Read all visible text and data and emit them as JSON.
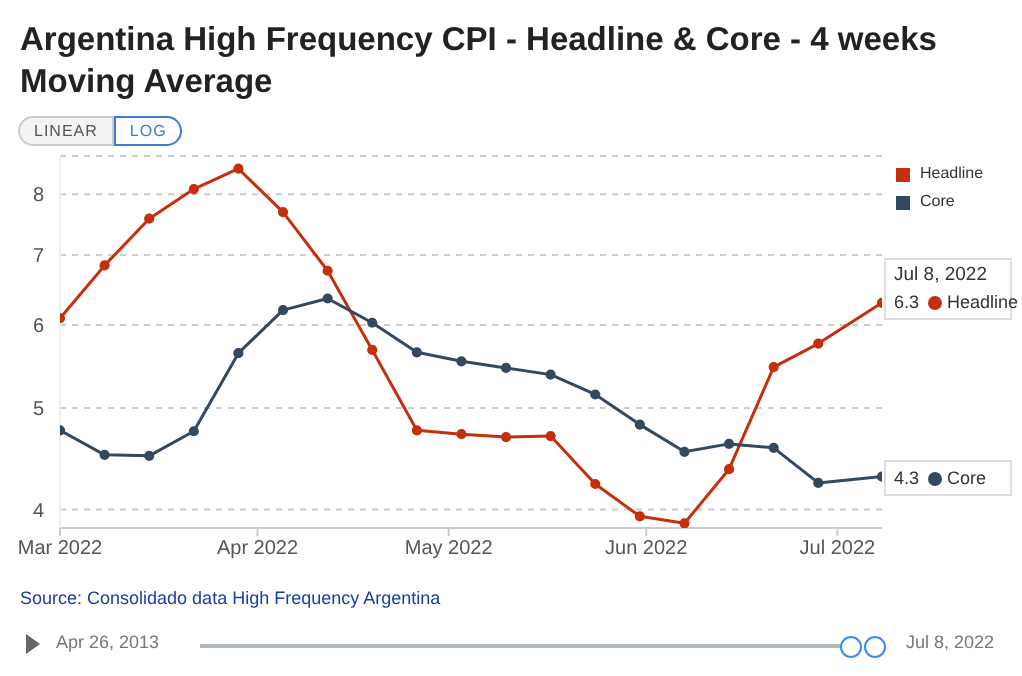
{
  "chart_data": {
    "type": "line",
    "title": "Argentina High Frequency CPI - Headline & Core - 4 weeks Moving Average",
    "x": [
      "2022-03-01",
      "2022-03-08",
      "2022-03-15",
      "2022-03-22",
      "2022-03-29",
      "2022-04-05",
      "2022-04-12",
      "2022-04-19",
      "2022-04-26",
      "2022-05-03",
      "2022-05-10",
      "2022-05-17",
      "2022-05-24",
      "2022-05-31",
      "2022-06-07",
      "2022-06-14",
      "2022-06-21",
      "2022-06-28",
      "2022-07-08"
    ],
    "series": [
      {
        "name": "Headline",
        "color": "#c4300c",
        "values": [
          6.09,
          6.84,
          7.58,
          8.09,
          8.46,
          7.69,
          6.76,
          5.68,
          4.76,
          4.72,
          4.69,
          4.7,
          4.23,
          3.94,
          3.88,
          4.37,
          5.47,
          5.76,
          6.3
        ],
        "value_labels": [
          null,
          null,
          null,
          null,
          null,
          null,
          null,
          null,
          null,
          null,
          null,
          null,
          null,
          null,
          null,
          null,
          null,
          null,
          "6.3"
        ]
      },
      {
        "name": "Core",
        "color": "#34495e",
        "values": [
          4.76,
          4.51,
          4.5,
          4.75,
          5.64,
          6.2,
          6.36,
          6.03,
          5.65,
          5.54,
          5.46,
          5.38,
          5.15,
          4.82,
          4.54,
          4.62,
          4.58,
          4.24,
          4.3
        ],
        "value_labels": [
          null,
          null,
          null,
          null,
          null,
          null,
          null,
          null,
          null,
          null,
          null,
          null,
          null,
          null,
          null,
          null,
          null,
          null,
          "4.3"
        ]
      }
    ],
    "xlim": [
      "2022-03-01",
      "2022-07-08"
    ],
    "xticks": [
      {
        "value": "2022-03-01",
        "label": "Mar 2022"
      },
      {
        "value": "2022-04-01",
        "label": "Apr 2022"
      },
      {
        "value": "2022-05-01",
        "label": "May 2022"
      },
      {
        "value": "2022-06-01",
        "label": "Jun 2022"
      },
      {
        "value": "2022-07-01",
        "label": "Jul 2022"
      }
    ],
    "ylim": [
      3.84,
      8.7
    ],
    "yticks": [
      4,
      5,
      6,
      7,
      8
    ],
    "log": "y",
    "grid": "y",
    "legend": "top right",
    "marker": "circle",
    "line_style": "solid",
    "annotations": [
      "LINEAR",
      "LOG",
      "Jul 8, 2022",
      "Source: Consolidado data High Frequency Argentina",
      "Apr 26, 2013",
      "Jul 8, 2022"
    ]
  }
}
